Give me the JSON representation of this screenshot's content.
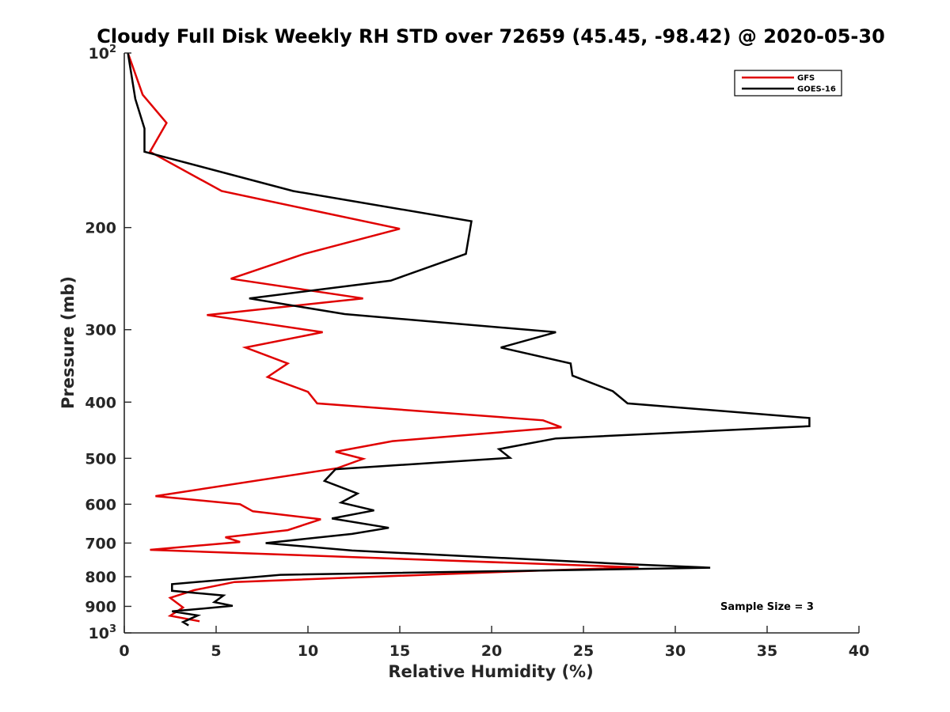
{
  "chart_data": {
    "type": "line",
    "title": "Cloudy Full Disk Weekly RH STD over 72659 (45.45, -98.42) @ 2020-05-30",
    "xlabel": "Relative Humidity (%)",
    "ylabel": "Pressure (mb)",
    "xlim": [
      0,
      40
    ],
    "ylim": [
      100,
      1000
    ],
    "yscale": "log",
    "y_reversed": true,
    "grid": false,
    "legend_placement": "top-right",
    "x_ticks": [
      "0",
      "5",
      "10",
      "15",
      "20",
      "25",
      "30",
      "35",
      "40"
    ],
    "x_tick_values": [
      0,
      5,
      10,
      15,
      20,
      25,
      30,
      35,
      40
    ],
    "y_ticks": [
      {
        "value": 100,
        "base": "10",
        "exp": "2"
      },
      {
        "value": 200,
        "label": "200"
      },
      {
        "value": 300,
        "label": "300"
      },
      {
        "value": 400,
        "label": "400"
      },
      {
        "value": 500,
        "label": "500"
      },
      {
        "value": 600,
        "label": "600"
      },
      {
        "value": 700,
        "label": "700"
      },
      {
        "value": 800,
        "label": "800"
      },
      {
        "value": 900,
        "label": "900"
      },
      {
        "value": 1000,
        "base": "10",
        "exp": "3"
      }
    ],
    "annotation": "Sample Size = 3",
    "series": [
      {
        "name": "GFS",
        "color": "#e00000",
        "x": [
          0.2,
          1.0,
          2.3,
          1.4,
          5.3,
          15.0,
          9.8,
          5.8,
          13.0,
          4.5,
          10.8,
          6.6,
          8.9,
          7.8,
          10.0,
          10.5,
          22.8,
          23.8,
          14.6,
          11.5,
          13.0,
          11.6,
          1.7,
          6.3,
          7.0,
          10.7,
          8.9,
          5.5,
          6.3,
          1.4,
          28.0,
          22.0,
          6.0,
          3.8,
          2.5,
          3.2,
          2.5,
          4.1
        ],
        "y": [
          100,
          118,
          132,
          148,
          173,
          201,
          222,
          245,
          265,
          283,
          303,
          322,
          343,
          362,
          384,
          402,
          430,
          442,
          467,
          487,
          501,
          520,
          581,
          600,
          617,
          637,
          665,
          684,
          697,
          719,
          771,
          782,
          817,
          844,
          870,
          904,
          934,
          955
        ]
      },
      {
        "name": "GOES-16",
        "color": "#000000",
        "x": [
          0.2,
          0.6,
          1.1,
          1.1,
          9.2,
          18.9,
          18.6,
          14.5,
          6.8,
          12.0,
          23.5,
          20.5,
          24.3,
          24.4,
          26.6,
          27.4,
          37.3,
          37.3,
          23.5,
          20.4,
          21.0,
          11.5,
          10.9,
          12.7,
          11.8,
          13.6,
          11.3,
          14.4,
          12.4,
          7.7,
          12.4,
          27.4,
          31.9,
          8.5,
          2.6,
          2.6,
          5.4,
          4.9,
          5.9,
          2.6,
          4.0,
          3.2,
          3.5
        ],
        "y": [
          100,
          120,
          135,
          148,
          173,
          195,
          222,
          247,
          265,
          282,
          303,
          322,
          343,
          360,
          383,
          402,
          426,
          440,
          462,
          482,
          499,
          522,
          547,
          575,
          596,
          615,
          635,
          659,
          675,
          700,
          721,
          761,
          772,
          794,
          824,
          846,
          862,
          885,
          898,
          918,
          933,
          958,
          971
        ]
      }
    ]
  }
}
